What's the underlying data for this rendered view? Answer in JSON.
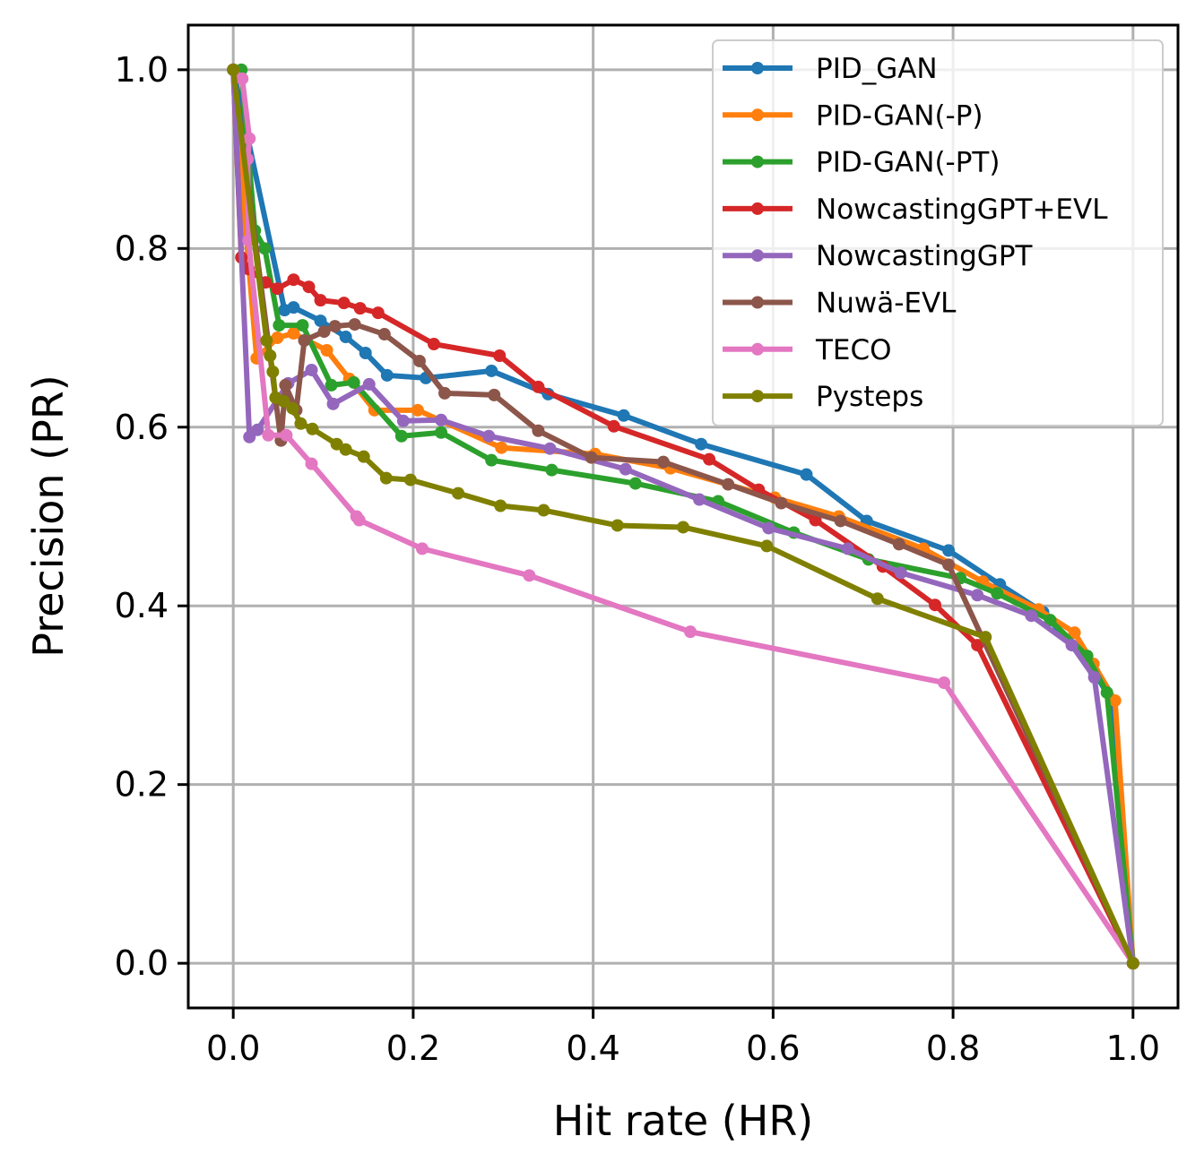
{
  "chart_data": {
    "type": "line",
    "title": "",
    "xlabel": "Hit rate (HR)",
    "ylabel": "Precision (PR)",
    "xlim": [
      -0.05,
      1.05
    ],
    "ylim": [
      -0.05,
      1.05
    ],
    "xticks": [
      0.0,
      0.2,
      0.4,
      0.6,
      0.8,
      1.0
    ],
    "yticks": [
      0.0,
      0.2,
      0.4,
      0.6,
      0.8,
      1.0
    ],
    "xtick_labels": [
      "0.0",
      "0.2",
      "0.4",
      "0.6",
      "0.8",
      "1.0"
    ],
    "ytick_labels": [
      "0.0",
      "0.2",
      "0.4",
      "0.6",
      "0.8",
      "1.0"
    ],
    "grid": true,
    "legend_position": "top-right",
    "series": [
      {
        "name": "PID_GAN",
        "color": "#1f77b4",
        "points": [
          [
            0,
            1
          ],
          [
            0.057,
            0.731
          ],
          [
            0.067,
            0.734
          ],
          [
            0.097,
            0.719
          ],
          [
            0.125,
            0.701
          ],
          [
            0.147,
            0.683
          ],
          [
            0.171,
            0.658
          ],
          [
            0.214,
            0.655
          ],
          [
            0.287,
            0.663
          ],
          [
            0.35,
            0.637
          ],
          [
            0.434,
            0.613
          ],
          [
            0.52,
            0.581
          ],
          [
            0.637,
            0.547
          ],
          [
            0.704,
            0.495
          ],
          [
            0.795,
            0.462
          ],
          [
            0.852,
            0.424
          ],
          [
            0.9,
            0.393
          ],
          [
            0.957,
            0.326
          ],
          [
            0.977,
            0.292
          ],
          [
            1,
            0
          ]
        ]
      },
      {
        "name": "PID-GAN(-P)",
        "color": "#ff7f0e",
        "points": [
          [
            0,
            1
          ],
          [
            0.014,
            0.82
          ],
          [
            0.026,
            0.677
          ],
          [
            0.049,
            0.7
          ],
          [
            0.067,
            0.705
          ],
          [
            0.104,
            0.686
          ],
          [
            0.129,
            0.654
          ],
          [
            0.157,
            0.619
          ],
          [
            0.205,
            0.619
          ],
          [
            0.298,
            0.577
          ],
          [
            0.402,
            0.57
          ],
          [
            0.486,
            0.554
          ],
          [
            0.602,
            0.521
          ],
          [
            0.673,
            0.5
          ],
          [
            0.767,
            0.464
          ],
          [
            0.833,
            0.427
          ],
          [
            0.895,
            0.396
          ],
          [
            0.935,
            0.37
          ],
          [
            0.956,
            0.335
          ],
          [
            0.98,
            0.294
          ],
          [
            1,
            0
          ]
        ]
      },
      {
        "name": "PID-GAN(-PT)",
        "color": "#2ca02c",
        "points": [
          [
            0.009,
            1
          ],
          [
            0.024,
            0.82
          ],
          [
            0.035,
            0.8
          ],
          [
            0.051,
            0.714
          ],
          [
            0.077,
            0.714
          ],
          [
            0.109,
            0.647
          ],
          [
            0.134,
            0.65
          ],
          [
            0.187,
            0.59
          ],
          [
            0.231,
            0.594
          ],
          [
            0.287,
            0.563
          ],
          [
            0.354,
            0.552
          ],
          [
            0.447,
            0.537
          ],
          [
            0.539,
            0.517
          ],
          [
            0.623,
            0.482
          ],
          [
            0.706,
            0.452
          ],
          [
            0.808,
            0.431
          ],
          [
            0.849,
            0.414
          ],
          [
            0.908,
            0.384
          ],
          [
            0.949,
            0.344
          ],
          [
            0.971,
            0.303
          ],
          [
            1,
            0
          ]
        ]
      },
      {
        "name": "NowcastingGPT+EVL",
        "color": "#d62728",
        "points": [
          [
            0,
            1
          ],
          [
            0.009,
            0.79
          ],
          [
            0.017,
            0.777
          ],
          [
            0.036,
            0.762
          ],
          [
            0.049,
            0.755
          ],
          [
            0.067,
            0.765
          ],
          [
            0.084,
            0.757
          ],
          [
            0.097,
            0.742
          ],
          [
            0.123,
            0.739
          ],
          [
            0.141,
            0.733
          ],
          [
            0.161,
            0.728
          ],
          [
            0.223,
            0.693
          ],
          [
            0.296,
            0.68
          ],
          [
            0.339,
            0.645
          ],
          [
            0.423,
            0.601
          ],
          [
            0.529,
            0.564
          ],
          [
            0.584,
            0.53
          ],
          [
            0.647,
            0.496
          ],
          [
            0.722,
            0.444
          ],
          [
            0.78,
            0.401
          ],
          [
            0.827,
            0.356
          ],
          [
            1,
            0
          ]
        ]
      },
      {
        "name": "NowcastingGPT",
        "color": "#9467bd",
        "points": [
          [
            0,
            1
          ],
          [
            0.018,
            0.589
          ],
          [
            0.027,
            0.597
          ],
          [
            0.061,
            0.649
          ],
          [
            0.087,
            0.664
          ],
          [
            0.111,
            0.626
          ],
          [
            0.151,
            0.648
          ],
          [
            0.189,
            0.607
          ],
          [
            0.231,
            0.608
          ],
          [
            0.284,
            0.59
          ],
          [
            0.352,
            0.576
          ],
          [
            0.436,
            0.553
          ],
          [
            0.518,
            0.519
          ],
          [
            0.595,
            0.487
          ],
          [
            0.683,
            0.464
          ],
          [
            0.742,
            0.437
          ],
          [
            0.827,
            0.412
          ],
          [
            0.887,
            0.389
          ],
          [
            0.932,
            0.356
          ],
          [
            0.957,
            0.32
          ],
          [
            1,
            0
          ]
        ]
      },
      {
        "name": "Nuwä-EVL",
        "color": "#8c564b",
        "points": [
          [
            0,
            1
          ],
          [
            0.053,
            0.585
          ],
          [
            0.058,
            0.647
          ],
          [
            0.07,
            0.619
          ],
          [
            0.079,
            0.697
          ],
          [
            0.101,
            0.707
          ],
          [
            0.113,
            0.713
          ],
          [
            0.135,
            0.715
          ],
          [
            0.168,
            0.704
          ],
          [
            0.207,
            0.674
          ],
          [
            0.235,
            0.638
          ],
          [
            0.29,
            0.636
          ],
          [
            0.339,
            0.596
          ],
          [
            0.398,
            0.566
          ],
          [
            0.478,
            0.561
          ],
          [
            0.55,
            0.536
          ],
          [
            0.609,
            0.515
          ],
          [
            0.675,
            0.495
          ],
          [
            0.74,
            0.469
          ],
          [
            0.795,
            0.446
          ],
          [
            1,
            0
          ]
        ]
      },
      {
        "name": "TECO",
        "color": "#e377c2",
        "points": [
          [
            0,
            1
          ],
          [
            0.01,
            0.99
          ],
          [
            0.018,
            0.923
          ],
          [
            0.016,
            0.9
          ],
          [
            0.017,
            0.809
          ],
          [
            0.039,
            0.591
          ],
          [
            0.059,
            0.591
          ],
          [
            0.087,
            0.559
          ],
          [
            0.137,
            0.5
          ],
          [
            0.14,
            0.496
          ],
          [
            0.21,
            0.464
          ],
          [
            0.329,
            0.434
          ],
          [
            0.508,
            0.371
          ],
          [
            0.79,
            0.314
          ],
          [
            1,
            0
          ]
        ]
      },
      {
        "name": "Pysteps",
        "color": "#808000",
        "points": [
          [
            0,
            1
          ],
          [
            0.037,
            0.697
          ],
          [
            0.041,
            0.68
          ],
          [
            0.044,
            0.662
          ],
          [
            0.047,
            0.633
          ],
          [
            0.056,
            0.629
          ],
          [
            0.066,
            0.621
          ],
          [
            0.075,
            0.604
          ],
          [
            0.088,
            0.598
          ],
          [
            0.115,
            0.581
          ],
          [
            0.125,
            0.575
          ],
          [
            0.145,
            0.567
          ],
          [
            0.17,
            0.543
          ],
          [
            0.197,
            0.541
          ],
          [
            0.25,
            0.526
          ],
          [
            0.297,
            0.512
          ],
          [
            0.345,
            0.507
          ],
          [
            0.427,
            0.49
          ],
          [
            0.5,
            0.488
          ],
          [
            0.593,
            0.467
          ],
          [
            0.716,
            0.408
          ],
          [
            0.836,
            0.365
          ],
          [
            1,
            0
          ]
        ]
      }
    ]
  }
}
